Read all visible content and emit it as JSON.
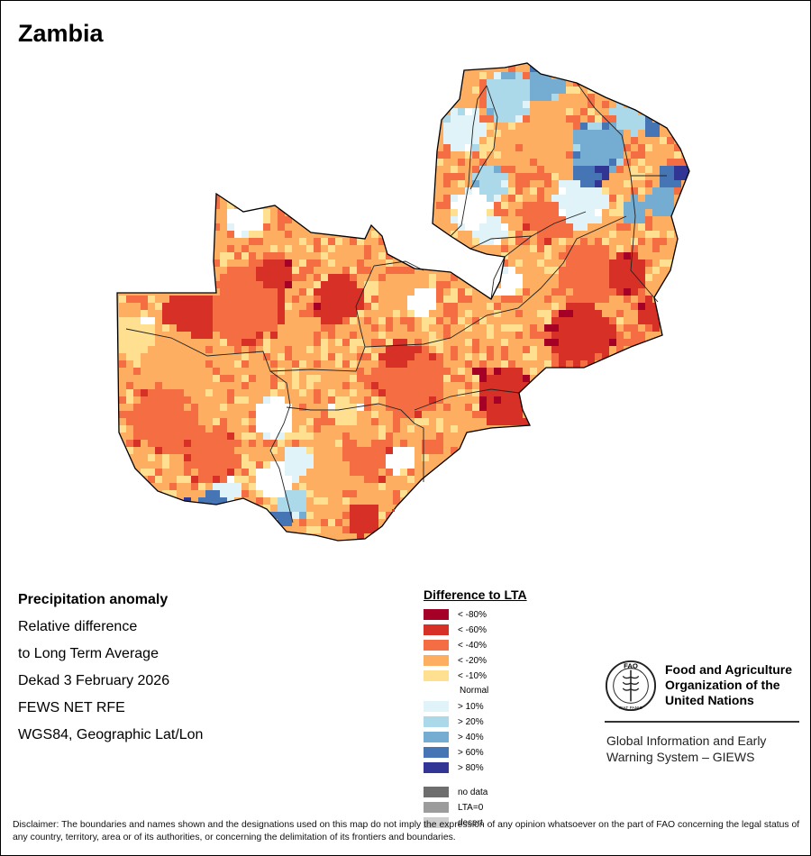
{
  "title": "Zambia",
  "info": {
    "heading": "Precipitation anomaly",
    "line1": "Relative difference",
    "line2": "to Long Term Average",
    "period": "Dekad 3 February 2026",
    "source": "FEWS NET RFE",
    "projection": "WGS84, Geographic Lat/Lon"
  },
  "legend": {
    "title": "Difference to LTA",
    "classes": [
      {
        "label": "< -80%",
        "color": "#a50026"
      },
      {
        "label": "< -60%",
        "color": "#d73027"
      },
      {
        "label": "< -40%",
        "color": "#f46d43"
      },
      {
        "label": "< -20%",
        "color": "#fdae61"
      },
      {
        "label": "< -10%",
        "color": "#fee090"
      },
      {
        "label": "Normal",
        "color": "#ffffff"
      },
      {
        "label": "> 10%",
        "color": "#e0f3f8"
      },
      {
        "label": "> 20%",
        "color": "#abd9e9"
      },
      {
        "label": "> 40%",
        "color": "#74add1"
      },
      {
        "label": "> 60%",
        "color": "#4575b4"
      },
      {
        "label": "> 80%",
        "color": "#313695"
      }
    ],
    "extras": [
      {
        "label": "no data",
        "color": "#6e6e6e"
      },
      {
        "label": "LTA=0",
        "color": "#9c9c9c"
      },
      {
        "label": "desert",
        "color": "#cfcfcf"
      }
    ]
  },
  "organization": {
    "logo_text": "FAO",
    "logo_motto": "FIAT PANIS",
    "name_line1": "Food and Agriculture",
    "name_line2": "Organization of the",
    "name_line3": "United Nations",
    "system_line1": "Global Information and Early",
    "system_line2": "Warning System – GIEWS"
  },
  "disclaimer": "Disclaimer: The boundaries and names shown and the designations used on this map do not imply the expression of any opinion whatsoever on the part of FAO concerning the legal status of any country, territory, area or of its authorities, or concerning the delimitation of its frontiers and boundaries."
}
